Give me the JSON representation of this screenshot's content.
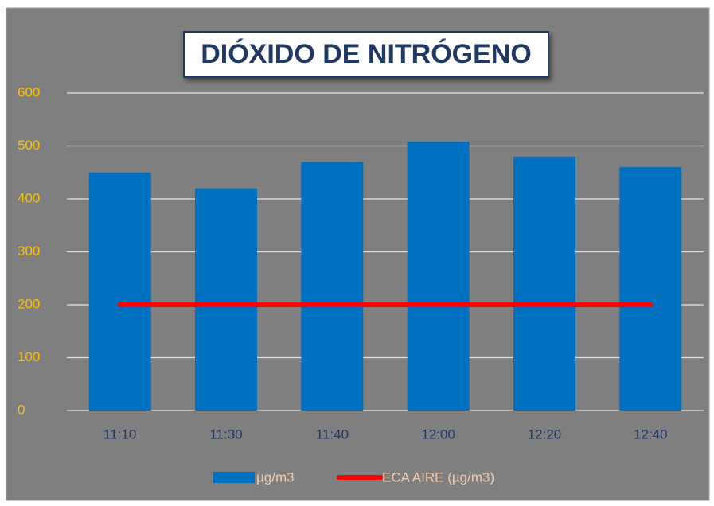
{
  "chart_data": {
    "type": "bar",
    "title": "DIÓXIDO DE NITRÓGENO",
    "categories": [
      "11:10",
      "11:30",
      "11:40",
      "12:00",
      "12:20",
      "12:40"
    ],
    "series": [
      {
        "name": "µg/m3",
        "type": "bar",
        "color": "#0070c0",
        "values": [
          450,
          420,
          470,
          508,
          480,
          460
        ]
      },
      {
        "name": "ECA AIRE (µg/m3)",
        "type": "line",
        "color": "#ff0000",
        "values": [
          200,
          200,
          200,
          200,
          200,
          200
        ]
      }
    ],
    "ylim": [
      0,
      600
    ],
    "yticks": [
      0,
      100,
      200,
      300,
      400,
      500,
      600
    ],
    "grid": true,
    "legend": "bottom"
  }
}
